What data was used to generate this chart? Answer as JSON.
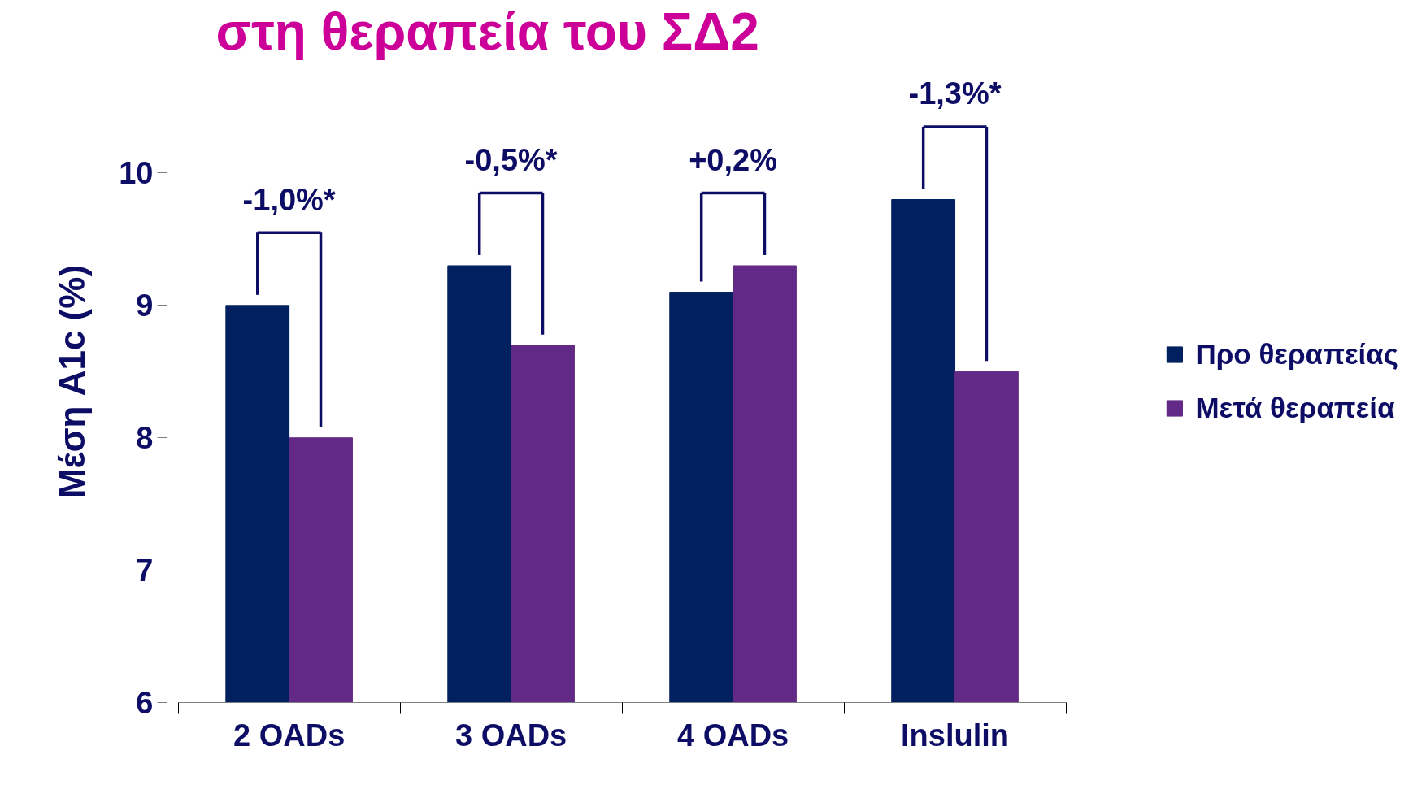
{
  "chart_data": {
    "type": "bar",
    "title": "στη θεραπεία του ΣΔ2",
    "ylabel": "Μέση A1c (%)",
    "categories": [
      "2 OADs",
      "3 OADs",
      "4 OADs",
      "Inslulin"
    ],
    "series": [
      {
        "name": "Προ θεραπείας",
        "color": "#002060",
        "values": [
          9.0,
          9.3,
          9.1,
          9.8
        ]
      },
      {
        "name": "Μετά θεραπεία",
        "color": "#622a86",
        "values": [
          8.0,
          8.7,
          9.3,
          8.5
        ]
      }
    ],
    "ylim": [
      6,
      10
    ],
    "yticks": [
      6,
      7,
      8,
      9,
      10
    ],
    "grid": false,
    "legend": "right",
    "annotations": [
      "-1,0%*",
      "-0,5%*",
      "+0,2%",
      "-1,3%*"
    ]
  }
}
